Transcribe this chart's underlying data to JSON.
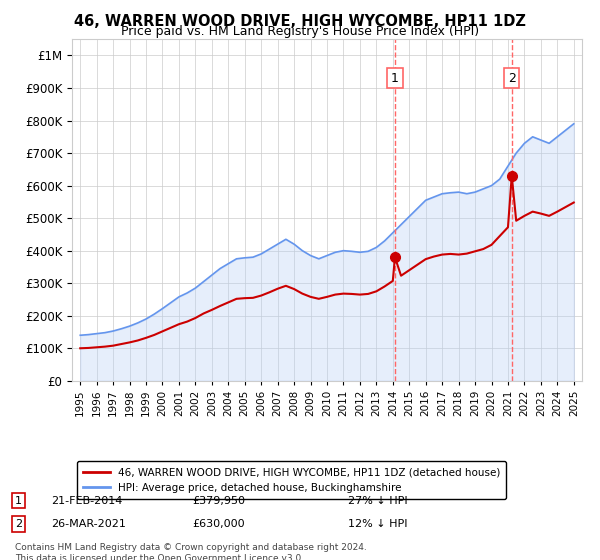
{
  "title": "46, WARREN WOOD DRIVE, HIGH WYCOMBE, HP11 1DZ",
  "subtitle": "Price paid vs. HM Land Registry's House Price Index (HPI)",
  "legend_line1": "46, WARREN WOOD DRIVE, HIGH WYCOMBE, HP11 1DZ (detached house)",
  "legend_line2": "HPI: Average price, detached house, Buckinghamshire",
  "annotation1_date": "21-FEB-2014",
  "annotation1_price": "£379,950",
  "annotation1_hpi": "27% ↓ HPI",
  "annotation1_year": 2014.13,
  "annotation1_value": 379950,
  "annotation2_date": "26-MAR-2021",
  "annotation2_price": "£630,000",
  "annotation2_hpi": "12% ↓ HPI",
  "annotation2_year": 2021.23,
  "annotation2_value": 630000,
  "footer": "Contains HM Land Registry data © Crown copyright and database right 2024.\nThis data is licensed under the Open Government Licence v3.0.",
  "hpi_color": "#6495ED",
  "hpi_fill_color": "#b8d0f5",
  "price_color": "#cc0000",
  "dashed_line_color": "#ff6666",
  "ylim": [
    0,
    1050000
  ],
  "xlim_start": 1994.5,
  "xlim_end": 2025.5,
  "years_hpi": [
    1995,
    1995.5,
    1996,
    1996.5,
    1997,
    1997.5,
    1998,
    1998.5,
    1999,
    1999.5,
    2000,
    2000.5,
    2001,
    2001.5,
    2002,
    2002.5,
    2003,
    2003.5,
    2004,
    2004.5,
    2005,
    2005.5,
    2006,
    2006.5,
    2007,
    2007.5,
    2008,
    2008.5,
    2009,
    2009.5,
    2010,
    2010.5,
    2011,
    2011.5,
    2012,
    2012.5,
    2013,
    2013.5,
    2014,
    2014.5,
    2015,
    2015.5,
    2016,
    2016.5,
    2017,
    2017.5,
    2018,
    2018.5,
    2019,
    2019.5,
    2020,
    2020.5,
    2021,
    2021.5,
    2022,
    2022.5,
    2023,
    2023.5,
    2024,
    2024.5,
    2025
  ],
  "hpi_values": [
    140000,
    142000,
    145000,
    148000,
    153000,
    160000,
    168000,
    178000,
    190000,
    205000,
    222000,
    240000,
    258000,
    270000,
    285000,
    305000,
    325000,
    345000,
    360000,
    375000,
    378000,
    380000,
    390000,
    405000,
    420000,
    435000,
    420000,
    400000,
    385000,
    375000,
    385000,
    395000,
    400000,
    398000,
    395000,
    398000,
    410000,
    430000,
    455000,
    480000,
    505000,
    530000,
    555000,
    565000,
    575000,
    578000,
    580000,
    575000,
    580000,
    590000,
    600000,
    620000,
    660000,
    700000,
    730000,
    750000,
    740000,
    730000,
    750000,
    770000,
    790000
  ],
  "years_price": [
    1995,
    1995.5,
    1996,
    1996.5,
    1997,
    1997.5,
    1998,
    1998.5,
    1999,
    1999.5,
    2000,
    2000.5,
    2001,
    2001.5,
    2002,
    2002.5,
    2003,
    2003.5,
    2004,
    2004.5,
    2005,
    2005.5,
    2006,
    2006.5,
    2007,
    2007.5,
    2008,
    2008.5,
    2009,
    2009.5,
    2010,
    2010.5,
    2011,
    2011.5,
    2012,
    2012.5,
    2013,
    2013.5,
    2014,
    2014.13,
    2014.5,
    2015,
    2015.5,
    2016,
    2016.5,
    2017,
    2017.5,
    2018,
    2018.5,
    2019,
    2019.5,
    2020,
    2020.5,
    2021,
    2021.23,
    2021.5,
    2022,
    2022.5,
    2023,
    2023.5,
    2024,
    2024.5,
    2025
  ],
  "price_values": [
    100000,
    101000,
    103000,
    105000,
    108000,
    113000,
    118000,
    124000,
    132000,
    141000,
    152000,
    163000,
    174000,
    182000,
    193000,
    207000,
    218000,
    230000,
    241000,
    252000,
    254000,
    255000,
    262000,
    272000,
    283000,
    292000,
    282000,
    268000,
    258000,
    252000,
    258000,
    265000,
    268000,
    267000,
    265000,
    267000,
    275000,
    290000,
    307000,
    379950,
    323000,
    340000,
    357000,
    374000,
    382000,
    388000,
    390000,
    388000,
    391000,
    398000,
    405000,
    418000,
    445000,
    472000,
    630000,
    492000,
    507000,
    520000,
    514000,
    507000,
    520000,
    534000,
    548000
  ]
}
